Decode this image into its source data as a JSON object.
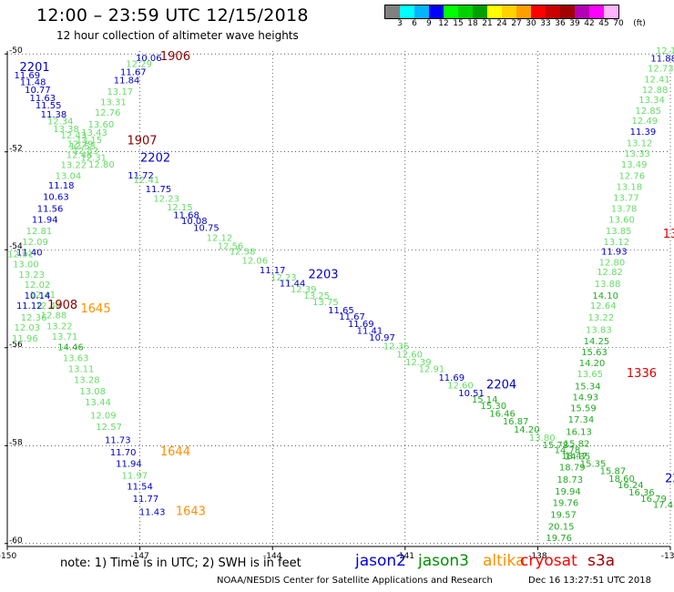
{
  "header": {
    "title": "12:00 – 23:59 UTC 12/15/2018",
    "subtitle": "12 hour collection of altimeter wave heights"
  },
  "colorbar": {
    "unit": "(ft)",
    "colors": [
      "#808080",
      "#00ffff",
      "#00b4ff",
      "#0000ff",
      "#00ff00",
      "#00d200",
      "#00a000",
      "#ffff00",
      "#ffd200",
      "#ffa000",
      "#ff0000",
      "#c80000",
      "#a00000",
      "#b400b4",
      "#ff00ff",
      "#ffb4ff"
    ],
    "ticks": [
      "3",
      "6",
      "9",
      "12",
      "15",
      "18",
      "21",
      "24",
      "27",
      "30",
      "33",
      "36",
      "39",
      "42",
      "45",
      "70"
    ]
  },
  "legend": {
    "note": "note: 1) Time is in UTC; 2) SWH is in feet",
    "missions": [
      {
        "name": "jason2",
        "color": "#0000e0"
      },
      {
        "name": "jason3",
        "color": "#009000"
      },
      {
        "name": "altika",
        "color": "#ff9000"
      },
      {
        "name": "cryosat",
        "color": "#ff0000"
      },
      {
        "name": "s3a",
        "color": "#a00000"
      }
    ]
  },
  "footer": {
    "credit": "NOAA/NESDIS Center for Satellite Applications and Research",
    "timestamp": "Dec 16 13:27:51 UTC 2018"
  },
  "chart_data": {
    "type": "scatter",
    "x_ticks": [
      -150,
      -147,
      -144,
      -141,
      -138,
      -135
    ],
    "y_ticks": [
      -50,
      -52,
      -54,
      -56,
      -58,
      -60
    ],
    "xlim": [
      -150,
      -135
    ],
    "ylim": [
      -60.06,
      -49.94
    ],
    "x_tick_labels": [
      "-150",
      "-147",
      "-144",
      "-141",
      "-138",
      "-135"
    ],
    "y_tick_labels": [
      "-50",
      "-52",
      "-54",
      "-56",
      "-58",
      "-60"
    ],
    "grid": "dotted",
    "colors": {
      "low": "#66dd66",
      "mid": "#22aa22",
      "jason": "#0000cc"
    },
    "series": [
      {
        "name": "2201",
        "color": "#0000cc",
        "label": {
          "text": "2201",
          "x": -149.38,
          "y": -50.35
        },
        "points": [
          {
            "x": -149.55,
            "y": -50.5,
            "v": "11.69"
          },
          {
            "x": -149.42,
            "y": -50.64,
            "v": "11.48"
          },
          {
            "x": -149.31,
            "y": -50.8,
            "v": "10.77"
          },
          {
            "x": -149.2,
            "y": -50.96,
            "v": "11.63"
          },
          {
            "x": -149.07,
            "y": -51.11,
            "v": "11.55"
          },
          {
            "x": -148.95,
            "y": -51.3,
            "v": "11.38"
          },
          {
            "x": -148.8,
            "y": -51.44,
            "v": "12.34"
          },
          {
            "x": -148.67,
            "y": -51.6,
            "v": "13.38"
          },
          {
            "x": -148.5,
            "y": -51.73,
            "v": "12.43"
          },
          {
            "x": -148.35,
            "y": -51.9,
            "v": "12.29"
          },
          {
            "x": -148.23,
            "y": -52.04,
            "v": "12.53"
          },
          {
            "x": -148.05,
            "y": -52.18,
            "v": "12.31"
          },
          {
            "x": -147.87,
            "y": -52.32,
            "v": "12.80"
          }
        ]
      },
      {
        "name": "2202",
        "color": "#0000cc",
        "label": {
          "text": "2202",
          "x": -146.65,
          "y": -52.2
        },
        "points": [
          {
            "x": -146.98,
            "y": -52.54,
            "v": "11.72"
          },
          {
            "x": -146.85,
            "y": -52.64,
            "v": "12.41"
          },
          {
            "x": -146.58,
            "y": -52.82,
            "v": "11.75"
          },
          {
            "x": -146.4,
            "y": -53.02,
            "v": "12.23"
          },
          {
            "x": -146.1,
            "y": -53.2,
            "v": "12.15"
          },
          {
            "x": -145.95,
            "y": -53.35,
            "v": "11.68"
          },
          {
            "x": -145.77,
            "y": -53.47,
            "v": "10.08"
          },
          {
            "x": -145.5,
            "y": -53.61,
            "v": "10.75"
          },
          {
            "x": -145.2,
            "y": -53.82,
            "v": "12.12"
          },
          {
            "x": -144.95,
            "y": -53.99,
            "v": "12.56"
          },
          {
            "x": -144.68,
            "y": -54.1,
            "v": "12.58"
          },
          {
            "x": -144.4,
            "y": -54.28,
            "v": "12.06"
          },
          {
            "x": -144.0,
            "y": -54.48,
            "v": "11.17"
          },
          {
            "x": -143.75,
            "y": -54.63,
            "v": "12.23"
          },
          {
            "x": -143.55,
            "y": -54.75,
            "v": "11.44"
          }
        ]
      },
      {
        "name": "2203",
        "color": "#0000cc",
        "label": {
          "text": "2203",
          "x": -142.85,
          "y": -54.58
        },
        "points": [
          {
            "x": -143.3,
            "y": -54.87,
            "v": "12.39"
          },
          {
            "x": -143.0,
            "y": -55.0,
            "v": "13.25"
          },
          {
            "x": -142.8,
            "y": -55.13,
            "v": "13.75"
          },
          {
            "x": -142.45,
            "y": -55.3,
            "v": "11.65"
          },
          {
            "x": -142.2,
            "y": -55.43,
            "v": "11.67"
          },
          {
            "x": -142.0,
            "y": -55.58,
            "v": "11.69"
          },
          {
            "x": -141.8,
            "y": -55.72,
            "v": "11.41"
          },
          {
            "x": -141.52,
            "y": -55.86,
            "v": "10.97"
          },
          {
            "x": -141.2,
            "y": -56.03,
            "v": "12.36"
          },
          {
            "x": -140.9,
            "y": -56.2,
            "v": "12.60"
          },
          {
            "x": -140.7,
            "y": -56.36,
            "v": "12.39"
          },
          {
            "x": -140.4,
            "y": -56.5,
            "v": "12.91"
          },
          {
            "x": -139.95,
            "y": -56.67,
            "v": "11.69"
          },
          {
            "x": -139.75,
            "y": -56.83,
            "v": "12.60"
          },
          {
            "x": -139.5,
            "y": -56.99,
            "v": "10.51"
          }
        ]
      },
      {
        "name": "2204",
        "color": "#0000cc",
        "label": {
          "text": "2204",
          "x": -138.82,
          "y": -56.83
        },
        "points": [
          {
            "x": -139.2,
            "y": -57.12,
            "v": "15.14"
          },
          {
            "x": -139.0,
            "y": -57.25,
            "v": "15.30"
          },
          {
            "x": -138.8,
            "y": -57.41,
            "v": "16.46"
          },
          {
            "x": -138.5,
            "y": -57.57,
            "v": "16.87"
          },
          {
            "x": -138.25,
            "y": -57.73,
            "v": "14.20"
          },
          {
            "x": -137.9,
            "y": -57.9,
            "v": "13.80"
          },
          {
            "x": -137.6,
            "y": -58.05,
            "v": "15.78"
          },
          {
            "x": -137.33,
            "y": -58.15,
            "v": "14.78"
          },
          {
            "x": -137.1,
            "y": -58.28,
            "v": "14.35"
          },
          {
            "x": -136.75,
            "y": -58.43,
            "v": "15.35"
          },
          {
            "x": -136.3,
            "y": -58.58,
            "v": "15.87"
          },
          {
            "x": -136.1,
            "y": -58.74,
            "v": "18.60"
          },
          {
            "x": -135.9,
            "y": -58.87,
            "v": "16.24"
          },
          {
            "x": -135.65,
            "y": -59.02,
            "v": "16.36"
          },
          {
            "x": -135.38,
            "y": -59.15,
            "v": "16.79"
          },
          {
            "x": -135.1,
            "y": -59.27,
            "v": "17.41"
          }
        ]
      },
      {
        "name": "1906",
        "color": "#8b0000",
        "label": {
          "text": "1906",
          "x": -146.2,
          "y": -50.13
        },
        "points": [
          {
            "x": -146.8,
            "y": -50.14,
            "v": "10.06"
          },
          {
            "x": -147.02,
            "y": -50.27,
            "v": "12.29"
          },
          {
            "x": -147.15,
            "y": -50.43,
            "v": "11.67"
          },
          {
            "x": -147.3,
            "y": -50.6,
            "v": "11.84"
          },
          {
            "x": -147.45,
            "y": -50.83,
            "v": "13.17"
          },
          {
            "x": -147.6,
            "y": -51.05,
            "v": "13.31"
          },
          {
            "x": -147.73,
            "y": -51.26,
            "v": "12.76"
          },
          {
            "x": -147.88,
            "y": -51.5,
            "v": "13.60"
          },
          {
            "x": -148.03,
            "y": -51.67,
            "v": "13.43"
          },
          {
            "x": -148.15,
            "y": -51.82,
            "v": "13.15"
          },
          {
            "x": -148.3,
            "y": -51.95,
            "v": "12.53"
          },
          {
            "x": -148.37,
            "y": -52.13,
            "v": "12.48"
          },
          {
            "x": -148.5,
            "y": -52.33,
            "v": "13.22"
          },
          {
            "x": -148.62,
            "y": -52.55,
            "v": "13.04"
          },
          {
            "x": -148.78,
            "y": -52.75,
            "v": "11.18"
          },
          {
            "x": -148.9,
            "y": -52.98,
            "v": "10.63"
          },
          {
            "x": -149.03,
            "y": -53.22,
            "v": "11.56"
          },
          {
            "x": -149.15,
            "y": -53.45,
            "v": "11.94"
          },
          {
            "x": -149.28,
            "y": -53.68,
            "v": "12.81"
          },
          {
            "x": -149.37,
            "y": -53.9,
            "v": "12.09"
          },
          {
            "x": -149.5,
            "y": -54.12,
            "v": "11.40"
          }
        ]
      },
      {
        "name": "1907",
        "color": "#8b0000",
        "label": {
          "text": "1907",
          "x": -146.95,
          "y": -51.85
        },
        "points": [
          {
            "x": -149.7,
            "y": -54.15,
            "v": "12.91"
          },
          {
            "x": -149.58,
            "y": -54.36,
            "v": "13.00"
          },
          {
            "x": -149.45,
            "y": -54.57,
            "v": "13.23"
          },
          {
            "x": -149.32,
            "y": -54.78,
            "v": "12.02"
          },
          {
            "x": -149.2,
            "y": -54.98,
            "v": "12.41"
          },
          {
            "x": -149.07,
            "y": -55.2,
            "v": "12.44"
          },
          {
            "x": -148.95,
            "y": -55.4,
            "v": "12.88"
          },
          {
            "x": -148.82,
            "y": -55.62,
            "v": "13.22"
          },
          {
            "x": -148.7,
            "y": -55.84,
            "v": "13.71"
          },
          {
            "x": -148.57,
            "y": -56.05,
            "v": "14.46"
          },
          {
            "x": -148.45,
            "y": -56.27,
            "v": "13.63"
          },
          {
            "x": -148.33,
            "y": -56.5,
            "v": "13.11"
          },
          {
            "x": -148.2,
            "y": -56.72,
            "v": "13.28"
          },
          {
            "x": -148.07,
            "y": -56.95,
            "v": "13.08"
          },
          {
            "x": -147.95,
            "y": -57.18,
            "v": "13.44"
          },
          {
            "x": -147.83,
            "y": -57.45,
            "v": "12.09"
          },
          {
            "x": -147.7,
            "y": -57.68,
            "v": "12.57"
          },
          {
            "x": -147.5,
            "y": -57.95,
            "v": "11.73"
          },
          {
            "x": -147.38,
            "y": -58.2,
            "v": "11.70"
          },
          {
            "x": -147.25,
            "y": -58.43,
            "v": "11.94"
          },
          {
            "x": -147.12,
            "y": -58.67,
            "v": "11.97"
          },
          {
            "x": -147.0,
            "y": -58.9,
            "v": "11.54"
          },
          {
            "x": -146.87,
            "y": -59.15,
            "v": "11.77"
          },
          {
            "x": -146.72,
            "y": -59.42,
            "v": "11.43"
          }
        ]
      },
      {
        "name": "1908",
        "color": "#8b0000",
        "label": {
          "text": "1908",
          "x": -148.75,
          "y": -55.2
        },
        "points": [
          {
            "x": -149.32,
            "y": -55.0,
            "v": "10.14"
          },
          {
            "x": -149.5,
            "y": -55.2,
            "v": "11.12"
          },
          {
            "x": -149.4,
            "y": -55.45,
            "v": "12.36"
          },
          {
            "x": -149.55,
            "y": -55.65,
            "v": "12.03"
          },
          {
            "x": -149.6,
            "y": -55.87,
            "v": "11.96"
          }
        ]
      },
      {
        "name": "1645",
        "color": "#ff9000",
        "label": {
          "text": "1645",
          "x": -148.0,
          "y": -55.28
        },
        "points": []
      },
      {
        "name": "1644",
        "color": "#ff9000",
        "label": {
          "text": "1644",
          "x": -146.2,
          "y": -58.2
        },
        "points": []
      },
      {
        "name": "1643",
        "color": "#ff9000",
        "label": {
          "text": "1643",
          "x": -145.85,
          "y": -59.42
        },
        "points": []
      },
      {
        "name": "1336",
        "color": "#dd0000",
        "label": {
          "text": "1336",
          "x": -135.65,
          "y": -56.6
        },
        "points": [
          {
            "x": -135.1,
            "y": -50.0,
            "v": "12.1"
          },
          {
            "x": -135.15,
            "y": -50.15,
            "v": "11.88"
          },
          {
            "x": -135.22,
            "y": -50.36,
            "v": "12.73"
          },
          {
            "x": -135.3,
            "y": -50.58,
            "v": "12.41"
          },
          {
            "x": -135.35,
            "y": -50.8,
            "v": "12.88"
          },
          {
            "x": -135.42,
            "y": -51.0,
            "v": "13.34"
          },
          {
            "x": -135.5,
            "y": -51.22,
            "v": "12.85"
          },
          {
            "x": -135.58,
            "y": -51.43,
            "v": "12.49"
          },
          {
            "x": -135.62,
            "y": -51.65,
            "v": "11.39"
          },
          {
            "x": -135.7,
            "y": -51.88,
            "v": "13.12"
          },
          {
            "x": -135.75,
            "y": -52.1,
            "v": "13.33"
          },
          {
            "x": -135.82,
            "y": -52.32,
            "v": "13.49"
          },
          {
            "x": -135.87,
            "y": -52.55,
            "v": "12.76"
          },
          {
            "x": -135.93,
            "y": -52.78,
            "v": "13.18"
          },
          {
            "x": -136.0,
            "y": -53.0,
            "v": "13.77"
          },
          {
            "x": -136.05,
            "y": -53.22,
            "v": "13.78"
          },
          {
            "x": -136.1,
            "y": -53.45,
            "v": "13.60"
          },
          {
            "x": -136.17,
            "y": -53.68,
            "v": "13.85"
          },
          {
            "x": -136.22,
            "y": -53.9,
            "v": "13.12"
          },
          {
            "x": -136.27,
            "y": -54.1,
            "v": "11.93"
          },
          {
            "x": -136.32,
            "y": -54.32,
            "v": "12.80"
          },
          {
            "x": -136.37,
            "y": -54.52,
            "v": "12.82"
          },
          {
            "x": -136.42,
            "y": -54.76,
            "v": "13.88"
          },
          {
            "x": -136.47,
            "y": -55.0,
            "v": "14.10"
          },
          {
            "x": -136.52,
            "y": -55.2,
            "v": "12.64"
          },
          {
            "x": -136.57,
            "y": -55.45,
            "v": "13.22"
          },
          {
            "x": -136.62,
            "y": -55.7,
            "v": "13.83"
          },
          {
            "x": -136.67,
            "y": -55.93,
            "v": "14.25"
          },
          {
            "x": -136.72,
            "y": -56.15,
            "v": "15.63"
          },
          {
            "x": -136.77,
            "y": -56.38,
            "v": "14.20"
          },
          {
            "x": -136.82,
            "y": -56.6,
            "v": "13.65"
          },
          {
            "x": -136.87,
            "y": -56.85,
            "v": "15.34"
          },
          {
            "x": -136.92,
            "y": -57.07,
            "v": "14.93"
          },
          {
            "x": -136.97,
            "y": -57.3,
            "v": "15.59"
          },
          {
            "x": -137.02,
            "y": -57.53,
            "v": "17.34"
          },
          {
            "x": -137.07,
            "y": -57.78,
            "v": "16.13"
          },
          {
            "x": -137.12,
            "y": -58.02,
            "v": "15.82"
          },
          {
            "x": -137.17,
            "y": -58.27,
            "v": "18.47"
          },
          {
            "x": -137.22,
            "y": -58.51,
            "v": "18.79"
          },
          {
            "x": -137.27,
            "y": -58.76,
            "v": "18.73"
          },
          {
            "x": -137.32,
            "y": -59.0,
            "v": "19.94"
          },
          {
            "x": -137.37,
            "y": -59.23,
            "v": "19.76"
          },
          {
            "x": -137.42,
            "y": -59.47,
            "v": "19.57"
          },
          {
            "x": -137.47,
            "y": -59.72,
            "v": "20.15"
          },
          {
            "x": -137.52,
            "y": -59.95,
            "v": "19.76"
          }
        ]
      },
      {
        "name": "22",
        "color": "#0000cc",
        "label": {
          "text": "22",
          "x": -134.95,
          "y": -58.75
        },
        "points": []
      },
      {
        "name": "13",
        "color": "#dd0000",
        "label": {
          "text": "13",
          "x": -135.0,
          "y": -53.75
        },
        "points": []
      }
    ]
  }
}
